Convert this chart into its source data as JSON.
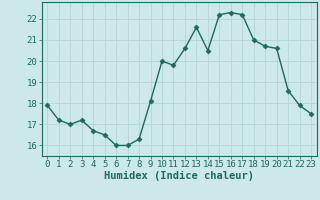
{
  "x": [
    0,
    1,
    2,
    3,
    4,
    5,
    6,
    7,
    8,
    9,
    10,
    11,
    12,
    13,
    14,
    15,
    16,
    17,
    18,
    19,
    20,
    21,
    22,
    23
  ],
  "y": [
    17.9,
    17.2,
    17.0,
    17.2,
    16.7,
    16.5,
    16.0,
    16.0,
    16.3,
    18.1,
    20.0,
    19.8,
    20.6,
    21.6,
    20.5,
    22.2,
    22.3,
    22.2,
    21.0,
    20.7,
    20.6,
    18.6,
    17.9,
    17.5
  ],
  "line_color": "#1a6b5a",
  "marker": "D",
  "marker_size": 2.5,
  "bg_color": "#cce8e8",
  "grid_color": "#b8d8d8",
  "xlabel": "Humidex (Indice chaleur)",
  "ylim": [
    15.5,
    22.8
  ],
  "xlim": [
    -0.5,
    23.5
  ],
  "yticks": [
    16,
    17,
    18,
    19,
    20,
    21,
    22
  ],
  "xticks": [
    0,
    1,
    2,
    3,
    4,
    5,
    6,
    7,
    8,
    9,
    10,
    11,
    12,
    13,
    14,
    15,
    16,
    17,
    18,
    19,
    20,
    21,
    22,
    23
  ],
  "xlabel_fontsize": 7.5,
  "tick_fontsize": 6.5,
  "line_width": 1.0
}
